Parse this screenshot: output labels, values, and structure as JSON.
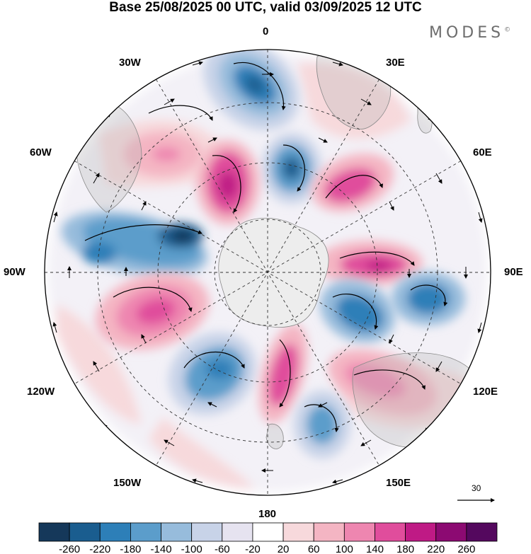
{
  "title": "Base 25/08/2025 00 UTC, valid 03/09/2025 12 UTC",
  "brand": "MODES",
  "brand_mark": "©",
  "longitude_labels": {
    "lon_0": "0",
    "lon_30e": "30E",
    "lon_60e": "60E",
    "lon_90e": "90E",
    "lon_120e": "120E",
    "lon_150e": "150E",
    "lon_180": "180",
    "lon_150w": "150W",
    "lon_120w": "120W",
    "lon_90w": "90W",
    "lon_60w": "60W",
    "lon_30w": "30W"
  },
  "vector_reference": "30",
  "colorbar": {
    "ticks": [
      "-260",
      "-220",
      "-180",
      "-140",
      "-100",
      "-60",
      "-20",
      "20",
      "60",
      "100",
      "140",
      "180",
      "220",
      "260"
    ],
    "colors": [
      "#15385a",
      "#1a5d8f",
      "#2d7fb8",
      "#5b9dcb",
      "#97bcdc",
      "#c8d3e8",
      "#e6e3f0",
      "#ffffff",
      "#f7d9dc",
      "#f4b5c3",
      "#ee86b0",
      "#e04d9c",
      "#bf1a85",
      "#8c0a72",
      "#54085e"
    ]
  },
  "colors": {
    "antarctica": "#ededed",
    "land_outline": "#8a8a8a",
    "background": "#ffffff"
  },
  "chart_data": {
    "type": "polar_stereographic_map",
    "hemisphere": "south",
    "field": "shaded anomaly with wind vectors",
    "units_reference_vector": 30,
    "anomaly_centers": [
      {
        "sign": "negative",
        "near_lon": "10W",
        "value_class": "-180 to -220"
      },
      {
        "sign": "negative",
        "near_lon": "15E",
        "value_class": "-140 to -180"
      },
      {
        "sign": "positive",
        "near_lon": "45W",
        "value_class": "140 to 180"
      },
      {
        "sign": "positive",
        "near_lon": "40E",
        "value_class": "100 to 140"
      },
      {
        "sign": "positive",
        "near_lon": "80W",
        "value_class": "20 to 100"
      },
      {
        "sign": "negative",
        "near_lon": "75W",
        "value_class": "-220 to -260"
      },
      {
        "sign": "positive",
        "near_lon": "85E",
        "value_class": "140 to 180"
      },
      {
        "sign": "negative",
        "near_lon": "110E",
        "value_class": "-140 to -180"
      },
      {
        "sign": "negative",
        "near_lon": "95E",
        "value_class": "-140 to -180"
      },
      {
        "sign": "positive",
        "near_lon": "105W",
        "value_class": "140 to 180"
      },
      {
        "sign": "negative",
        "near_lon": "140W",
        "value_class": "-140 to -180"
      },
      {
        "sign": "positive",
        "near_lon": "170E",
        "value_class": "140 to 180"
      },
      {
        "sign": "negative",
        "near_lon": "160E",
        "value_class": "-100 to -140"
      },
      {
        "sign": "positive",
        "near_lon": "130E",
        "value_class": "60 to 140"
      }
    ]
  }
}
